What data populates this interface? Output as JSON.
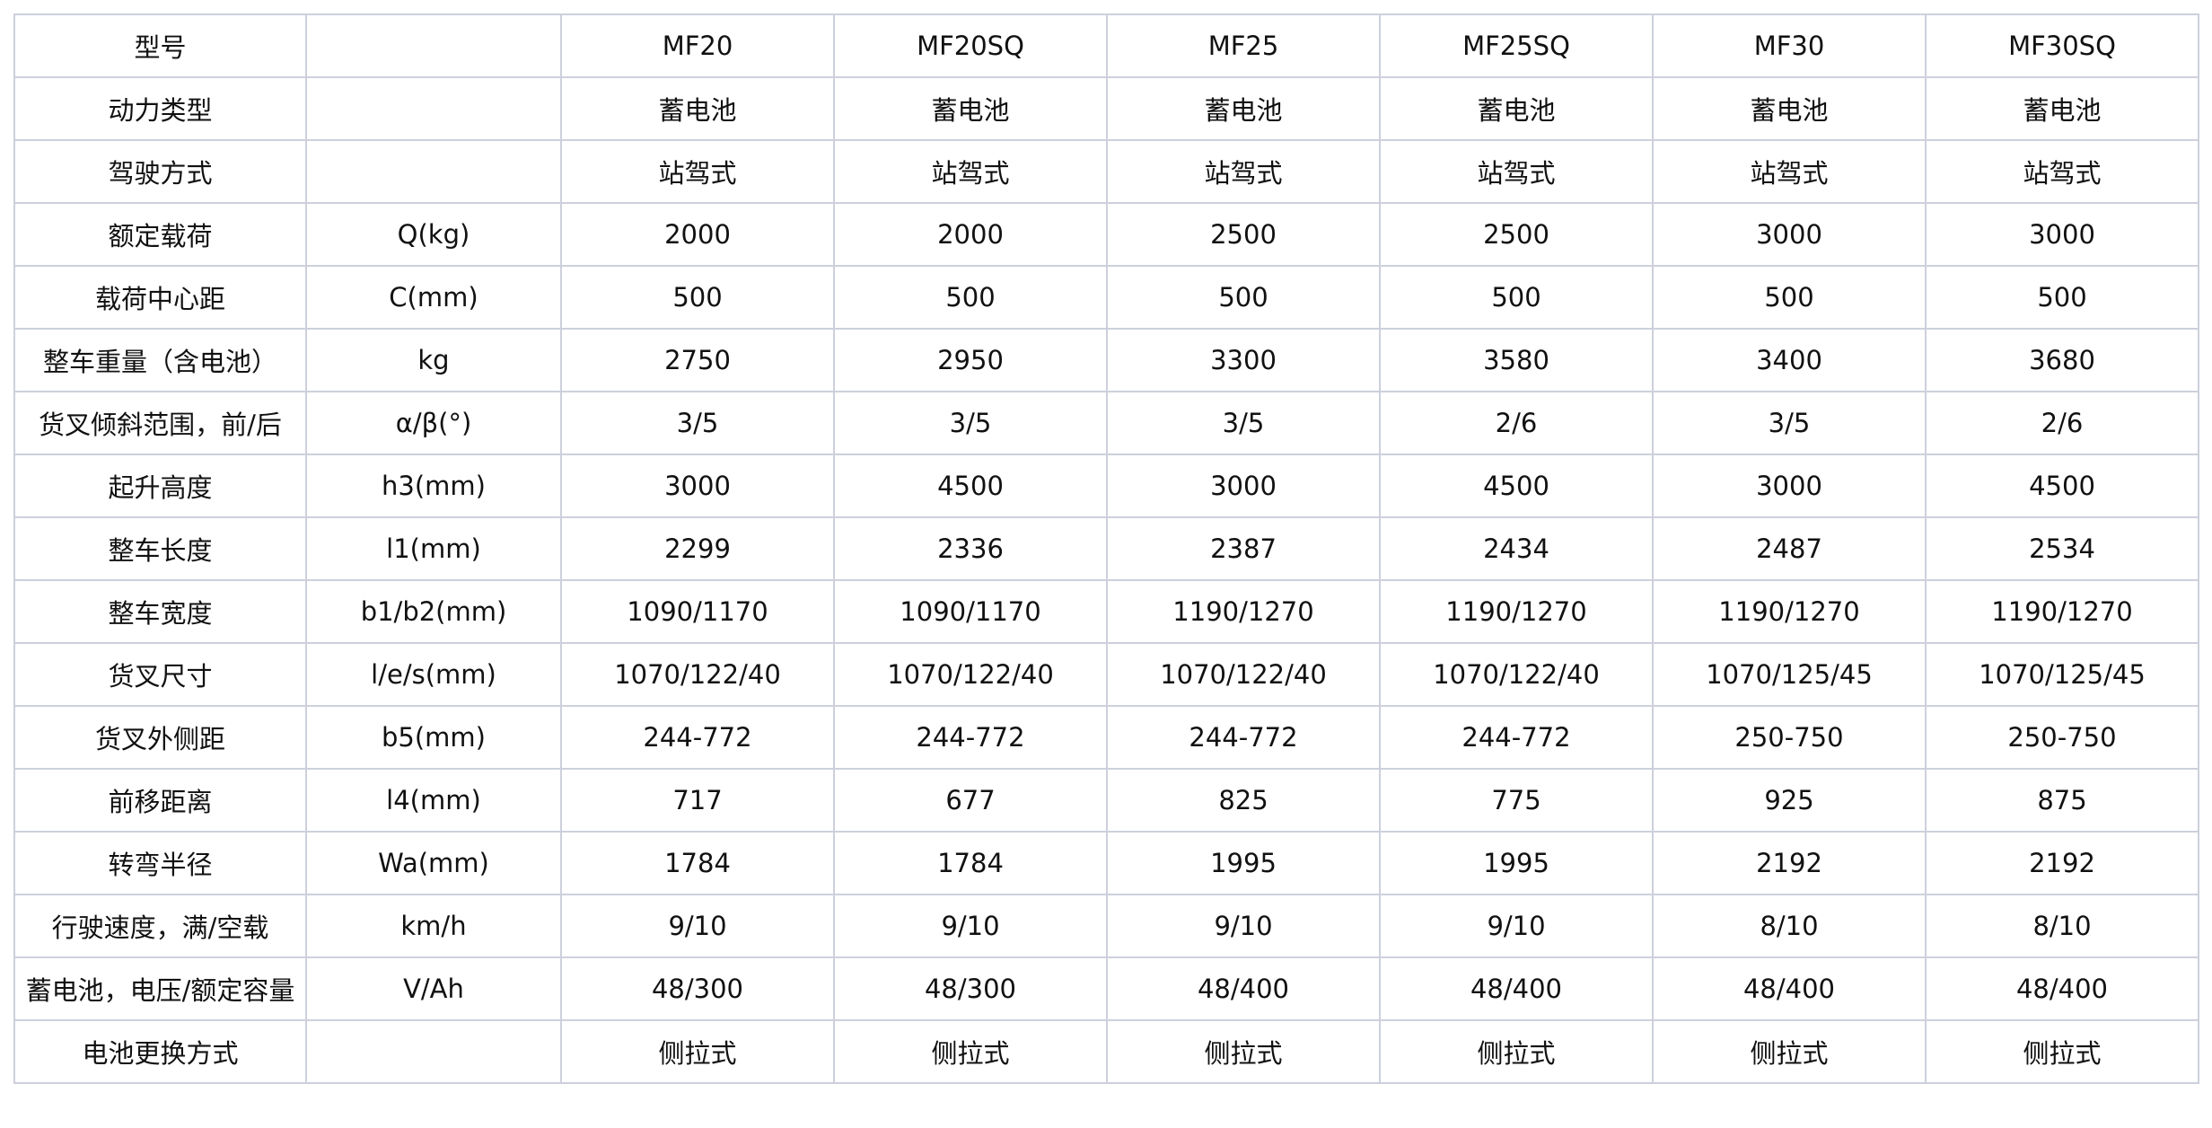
{
  "table": {
    "rows": [
      {
        "label": "型号",
        "unit": "",
        "values": [
          "MF20",
          "MF20SQ",
          "MF25",
          "MF25SQ",
          "MF30",
          "MF30SQ"
        ]
      },
      {
        "label": "动力类型",
        "unit": "",
        "values": [
          "蓄电池",
          "蓄电池",
          "蓄电池",
          "蓄电池",
          "蓄电池",
          "蓄电池"
        ]
      },
      {
        "label": "驾驶方式",
        "unit": "",
        "values": [
          "站驾式",
          "站驾式",
          "站驾式",
          "站驾式",
          "站驾式",
          "站驾式"
        ]
      },
      {
        "label": "额定载荷",
        "unit": "Q(kg)",
        "values": [
          "2000",
          "2000",
          "2500",
          "2500",
          "3000",
          "3000"
        ]
      },
      {
        "label": "载荷中心距",
        "unit": "C(mm)",
        "values": [
          "500",
          "500",
          "500",
          "500",
          "500",
          "500"
        ]
      },
      {
        "label": "整车重量（含电池）",
        "unit": "kg",
        "values": [
          "2750",
          "2950",
          "3300",
          "3580",
          "3400",
          "3680"
        ]
      },
      {
        "label": "货叉倾斜范围，前/后",
        "unit": "α/β(°)",
        "values": [
          "3/5",
          "3/5",
          "3/5",
          "2/6",
          "3/5",
          "2/6"
        ]
      },
      {
        "label": "起升高度",
        "unit": "h3(mm)",
        "values": [
          "3000",
          "4500",
          "3000",
          "4500",
          "3000",
          "4500"
        ]
      },
      {
        "label": "整车长度",
        "unit": "l1(mm)",
        "values": [
          "2299",
          "2336",
          "2387",
          "2434",
          "2487",
          "2534"
        ]
      },
      {
        "label": "整车宽度",
        "unit": "b1/b2(mm)",
        "values": [
          "1090/1170",
          "1090/1170",
          "1190/1270",
          "1190/1270",
          "1190/1270",
          "1190/1270"
        ]
      },
      {
        "label": "货叉尺寸",
        "unit": "l/e/s(mm)",
        "values": [
          "1070/122/40",
          "1070/122/40",
          "1070/122/40",
          "1070/122/40",
          "1070/125/45",
          "1070/125/45"
        ]
      },
      {
        "label": "货叉外侧距",
        "unit": "b5(mm)",
        "values": [
          "244-772",
          "244-772",
          "244-772",
          "244-772",
          "250-750",
          "250-750"
        ]
      },
      {
        "label": "前移距离",
        "unit": "l4(mm)",
        "values": [
          "717",
          "677",
          "825",
          "775",
          "925",
          "875"
        ]
      },
      {
        "label": "转弯半径",
        "unit": "Wa(mm)",
        "values": [
          "1784",
          "1784",
          "1995",
          "1995",
          "2192",
          "2192"
        ]
      },
      {
        "label": "行驶速度，满/空载",
        "unit": "km/h",
        "values": [
          "9/10",
          "9/10",
          "9/10",
          "9/10",
          "8/10",
          "8/10"
        ]
      },
      {
        "label": "蓄电池，电压/额定容量",
        "unit": "V/Ah",
        "values": [
          "48/300",
          "48/300",
          "48/400",
          "48/400",
          "48/400",
          "48/400"
        ]
      },
      {
        "label": "电池更换方式",
        "unit": "",
        "values": [
          "侧拉式",
          "侧拉式",
          "侧拉式",
          "侧拉式",
          "侧拉式",
          "侧拉式"
        ]
      }
    ]
  }
}
